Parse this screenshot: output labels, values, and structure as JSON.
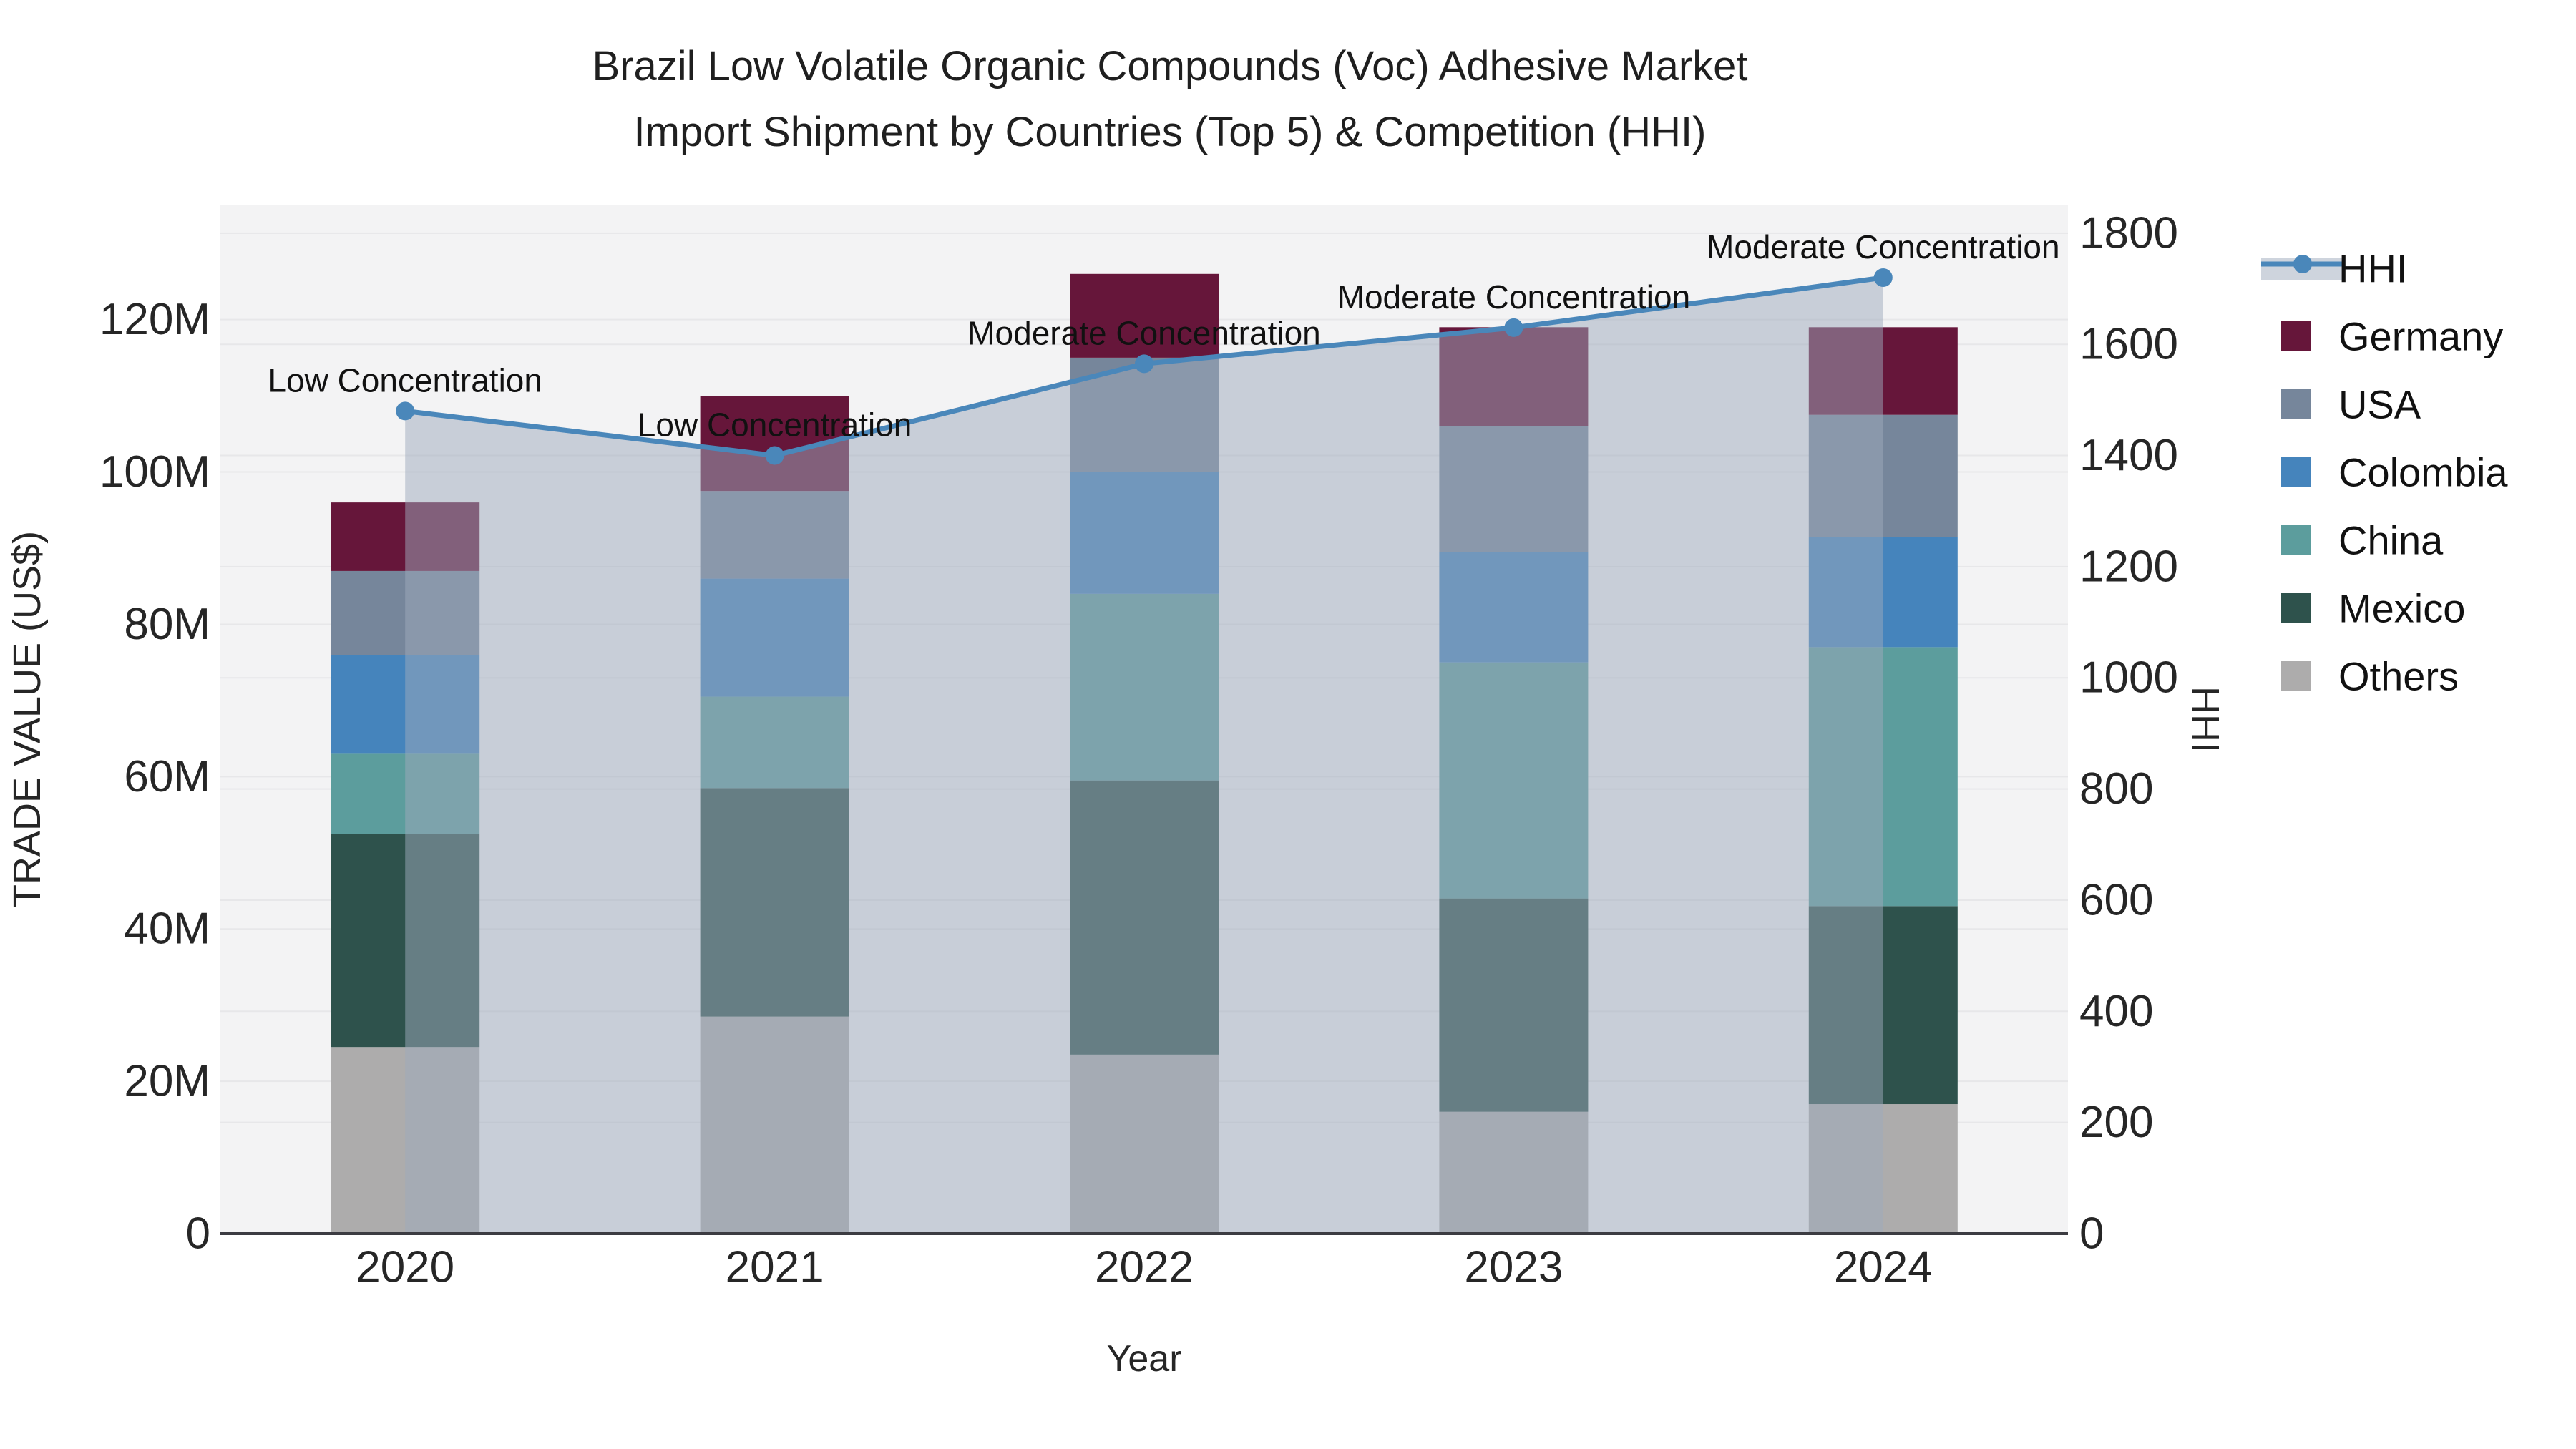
{
  "chart_data": {
    "type": "bar",
    "subtype": "stacked-bar-with-line",
    "title_line1": "Brazil Low Volatile Organic Compounds (Voc) Adhesive Market",
    "title_line2": "Import Shipment by Countries (Top 5) & Competition (HHI)",
    "xlabel": "Year",
    "ylabel_left": "TRADE VALUE (US$)",
    "ylabel_right": "HHI",
    "unit_note": "bar segment values in millions of US$",
    "categories": [
      "2020",
      "2021",
      "2022",
      "2023",
      "2024"
    ],
    "series": [
      {
        "name": "Others",
        "color": "#ADACAC",
        "values": [
          24.5,
          28.5,
          23.5,
          16.0,
          17.0
        ]
      },
      {
        "name": "Mexico",
        "color": "#2E524C",
        "values": [
          28.0,
          30.0,
          36.0,
          28.0,
          26.0
        ]
      },
      {
        "name": "China",
        "color": "#5C9D9D",
        "values": [
          10.5,
          12.0,
          24.5,
          31.0,
          34.0
        ]
      },
      {
        "name": "Colombia",
        "color": "#4584BC",
        "values": [
          13.0,
          15.5,
          16.0,
          14.5,
          14.5
        ]
      },
      {
        "name": "USA",
        "color": "#76869B",
        "values": [
          11.0,
          11.5,
          15.0,
          16.5,
          16.0
        ]
      },
      {
        "name": "Germany",
        "color": "#66163A",
        "values": [
          9.0,
          12.5,
          11.0,
          13.0,
          11.5
        ]
      }
    ],
    "line_series": {
      "name": "HHI",
      "color": "#4A87BA",
      "axis": "right",
      "values": [
        1480,
        1400,
        1565,
        1630,
        1720
      ],
      "area_fill": "rgba(158,170,188,0.5)"
    },
    "annotations": [
      {
        "category": "2020",
        "text": "Low Concentration"
      },
      {
        "category": "2021",
        "text": "Low Concentration"
      },
      {
        "category": "2022",
        "text": "Moderate Concentration"
      },
      {
        "category": "2023",
        "text": "Moderate Concentration"
      },
      {
        "category": "2024",
        "text": "Moderate Concentration"
      }
    ],
    "y_left": {
      "min": 0,
      "max": 135,
      "tick_values": [
        0,
        20,
        40,
        60,
        80,
        100,
        120
      ],
      "tick_labels": [
        "0",
        "20M",
        "40M",
        "60M",
        "80M",
        "100M",
        "120M"
      ]
    },
    "y_right": {
      "min": 0,
      "max": 1850,
      "tick_values": [
        0,
        200,
        400,
        600,
        800,
        1000,
        1200,
        1400,
        1600,
        1800
      ],
      "tick_labels": [
        "0",
        "200",
        "400",
        "600",
        "800",
        "1000",
        "1200",
        "1400",
        "1600",
        "1800"
      ]
    },
    "legend": {
      "position": "top-right",
      "entries": [
        "HHI",
        "Germany",
        "USA",
        "Colombia",
        "China",
        "Mexico",
        "Others"
      ]
    },
    "style": {
      "plot_bg": "#F3F3F4",
      "grid": "#E7E7E9",
      "axis_line": "#3C3C42",
      "text": "#262626"
    },
    "grid_on": true
  }
}
